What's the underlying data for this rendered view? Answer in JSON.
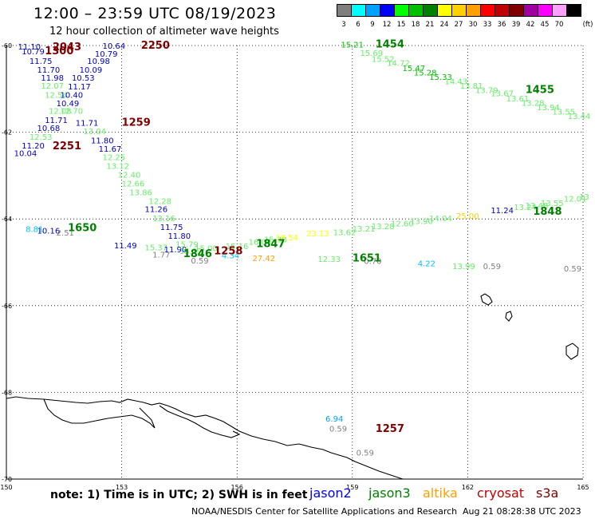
{
  "title": "12:00 – 23:59 UTC 08/19/2023",
  "subtitle": "12 hour collection of altimeter wave heights",
  "legend": {
    "unit": "(ft)",
    "entries": [
      {
        "label": "3",
        "color": "#7f7f7f"
      },
      {
        "label": "6",
        "color": "#00ffff"
      },
      {
        "label": "9",
        "color": "#00a0ff"
      },
      {
        "label": "12",
        "color": "#0000ff"
      },
      {
        "label": "15",
        "color": "#00ff00"
      },
      {
        "label": "18",
        "color": "#00c000"
      },
      {
        "label": "21",
        "color": "#008000"
      },
      {
        "label": "24",
        "color": "#ffff00"
      },
      {
        "label": "27",
        "color": "#ffd000"
      },
      {
        "label": "30",
        "color": "#ffa000"
      },
      {
        "label": "33",
        "color": "#ff0000"
      },
      {
        "label": "36",
        "color": "#c00000"
      },
      {
        "label": "39",
        "color": "#800000"
      },
      {
        "label": "42",
        "color": "#a000a0"
      },
      {
        "label": "45",
        "color": "#ff00ff"
      },
      {
        "label": "70",
        "color": "#ffa0ff"
      },
      {
        "label": "",
        "color": "#000000"
      }
    ]
  },
  "axes": {
    "lat_ticks": [
      "-60",
      "-62",
      "-64",
      "-66",
      "-68",
      "-70"
    ],
    "lon_ticks": [
      "150",
      "153",
      "156",
      "159",
      "162",
      "165"
    ]
  },
  "points": [
    {
      "t": "11.10",
      "c": "#0000c0",
      "lon": 150.3,
      "lat": -60.02
    },
    {
      "t": "10.79",
      "c": "#0000c0",
      "lon": 150.4,
      "lat": -60.13
    },
    {
      "t": "11.75",
      "c": "#0000c0",
      "lon": 150.6,
      "lat": -60.35
    },
    {
      "t": "11.70",
      "c": "#0000c0",
      "lon": 150.8,
      "lat": -60.55
    },
    {
      "t": "11.98",
      "c": "#0000c0",
      "lon": 150.9,
      "lat": -60.74
    },
    {
      "t": "12.07",
      "c": "#66ee66",
      "lon": 150.9,
      "lat": -60.92
    },
    {
      "t": "12.54",
      "c": "#66ee66",
      "lon": 151.0,
      "lat": -61.13
    },
    {
      "t": "12.08",
      "c": "#66ee66",
      "lon": 151.1,
      "lat": -61.5
    },
    {
      "t": "12.70",
      "c": "#66ee66",
      "lon": 151.4,
      "lat": -61.5
    },
    {
      "t": "10.64",
      "c": "#0000c0",
      "lon": 152.5,
      "lat": -60.0
    },
    {
      "t": "10.79",
      "c": "#0000c0",
      "lon": 152.3,
      "lat": -60.18
    },
    {
      "t": "10.98",
      "c": "#0000c0",
      "lon": 152.1,
      "lat": -60.35
    },
    {
      "t": "10.09",
      "c": "#0000c0",
      "lon": 151.9,
      "lat": -60.55
    },
    {
      "t": "10.53",
      "c": "#0000c0",
      "lon": 151.7,
      "lat": -60.74
    },
    {
      "t": "11.17",
      "c": "#0000c0",
      "lon": 151.6,
      "lat": -60.94
    },
    {
      "t": "10.40",
      "c": "#0000c0",
      "lon": 151.4,
      "lat": -61.13
    },
    {
      "t": "10.49",
      "c": "#0000c0",
      "lon": 151.3,
      "lat": -61.33
    },
    {
      "t": "11.71",
      "c": "#0000c0",
      "lon": 151.0,
      "lat": -61.71
    },
    {
      "t": "10.68",
      "c": "#0000c0",
      "lon": 150.8,
      "lat": -61.9
    },
    {
      "t": "12.53",
      "c": "#66ee66",
      "lon": 150.6,
      "lat": -62.1
    },
    {
      "t": "11.20",
      "c": "#0000c0",
      "lon": 150.4,
      "lat": -62.3
    },
    {
      "t": "10.04",
      "c": "#0000c0",
      "lon": 150.2,
      "lat": -62.48
    },
    {
      "t": "11.71",
      "c": "#0000c0",
      "lon": 151.8,
      "lat": -61.78
    },
    {
      "t": "13.04",
      "c": "#66ee66",
      "lon": 152.0,
      "lat": -61.97
    },
    {
      "t": "11.80",
      "c": "#0000c0",
      "lon": 152.2,
      "lat": -62.18
    },
    {
      "t": "11.67",
      "c": "#0000c0",
      "lon": 152.4,
      "lat": -62.38
    },
    {
      "t": "12.25",
      "c": "#66ee66",
      "lon": 152.5,
      "lat": -62.57
    },
    {
      "t": "13.12",
      "c": "#66ee66",
      "lon": 152.6,
      "lat": -62.77
    },
    {
      "t": "12.40",
      "c": "#66ee66",
      "lon": 152.9,
      "lat": -62.97
    },
    {
      "t": "12.66",
      "c": "#66ee66",
      "lon": 153.0,
      "lat": -63.18
    },
    {
      "t": "13.86",
      "c": "#66ee66",
      "lon": 153.2,
      "lat": -63.38
    },
    {
      "t": "12.28",
      "c": "#66ee66",
      "lon": 153.7,
      "lat": -63.58
    },
    {
      "t": "11.26",
      "c": "#0000c0",
      "lon": 153.6,
      "lat": -63.77
    },
    {
      "t": "13.16",
      "c": "#66ee66",
      "lon": 153.8,
      "lat": -63.98
    },
    {
      "t": "11.75",
      "c": "#0000c0",
      "lon": 154.0,
      "lat": -64.18
    },
    {
      "t": "11.80",
      "c": "#0000c0",
      "lon": 154.2,
      "lat": -64.38
    },
    {
      "t": "15.79",
      "c": "#66ee66",
      "lon": 154.4,
      "lat": -64.58
    },
    {
      "t": "11.49",
      "c": "#0000c0",
      "lon": 152.8,
      "lat": -64.6
    },
    {
      "t": "15.37",
      "c": "#66ee66",
      "lon": 153.6,
      "lat": -64.65
    },
    {
      "t": "1.77",
      "c": "#7f7f7f",
      "lon": 153.8,
      "lat": -64.82
    },
    {
      "t": "11.90",
      "c": "#0000c0",
      "lon": 154.1,
      "lat": -64.7
    },
    {
      "t": "15.22",
      "c": "#66ee66",
      "lon": 154.5,
      "lat": -64.73
    },
    {
      "t": "15.00",
      "c": "#66ee66",
      "lon": 154.9,
      "lat": -64.67
    },
    {
      "t": "15.16",
      "c": "#66ee66",
      "lon": 155.7,
      "lat": -64.62
    },
    {
      "t": "16.04",
      "c": "#66ee66",
      "lon": 156.3,
      "lat": -64.52
    },
    {
      "t": "15.38",
      "c": "#66ee66",
      "lon": 156.7,
      "lat": -64.47
    },
    {
      "t": "16.54",
      "c": "#ffff00",
      "lon": 157.0,
      "lat": -64.42
    },
    {
      "t": "0.59",
      "c": "#7f7f7f",
      "lon": 154.8,
      "lat": -64.95
    },
    {
      "t": "4.34",
      "c": "#00c0ff",
      "lon": 155.6,
      "lat": -64.83
    },
    {
      "t": "27.42",
      "c": "#ffa000",
      "lon": 156.4,
      "lat": -64.9
    },
    {
      "t": "8.81",
      "c": "#00c0ff",
      "lon": 150.5,
      "lat": -64.23
    },
    {
      "t": "10.16",
      "c": "#0000c0",
      "lon": 150.8,
      "lat": -64.26
    },
    {
      "t": "2.51",
      "c": "#7f7f7f",
      "lon": 151.3,
      "lat": -64.31
    },
    {
      "t": "23.13",
      "c": "#ffff00",
      "lon": 157.8,
      "lat": -64.33
    },
    {
      "t": "13.62",
      "c": "#66ee66",
      "lon": 158.5,
      "lat": -64.3
    },
    {
      "t": "13.21",
      "c": "#66ee66",
      "lon": 159.0,
      "lat": -64.22
    },
    {
      "t": "13.28",
      "c": "#66ee66",
      "lon": 159.5,
      "lat": -64.16
    },
    {
      "t": "12.60",
      "c": "#66ee66",
      "lon": 160.0,
      "lat": -64.1
    },
    {
      "t": "13.90",
      "c": "#66ee66",
      "lon": 160.5,
      "lat": -64.04
    },
    {
      "t": "14.04",
      "c": "#66ee66",
      "lon": 161.0,
      "lat": -63.98
    },
    {
      "t": "25.00",
      "c": "#ffd000",
      "lon": 161.7,
      "lat": -63.92
    },
    {
      "t": "12.33",
      "c": "#66ee66",
      "lon": 158.1,
      "lat": -64.92
    },
    {
      "t": "0.70",
      "c": "#7f7f7f",
      "lon": 159.3,
      "lat": -64.96
    },
    {
      "t": "4.22",
      "c": "#00c0ff",
      "lon": 160.7,
      "lat": -65.02
    },
    {
      "t": "13.99",
      "c": "#66ee66",
      "lon": 161.6,
      "lat": -65.08
    },
    {
      "t": "0.59",
      "c": "#7f7f7f",
      "lon": 162.4,
      "lat": -65.08
    },
    {
      "t": "0.59",
      "c": "#7f7f7f",
      "lon": 164.5,
      "lat": -65.14
    },
    {
      "t": "11.24",
      "c": "#0000c0",
      "lon": 162.6,
      "lat": -63.79
    },
    {
      "t": "13.24",
      "c": "#66ee66",
      "lon": 163.2,
      "lat": -63.72
    },
    {
      "t": "13.48",
      "c": "#66ee66",
      "lon": 163.5,
      "lat": -63.68
    },
    {
      "t": "13.55",
      "c": "#66ee66",
      "lon": 163.9,
      "lat": -63.63
    },
    {
      "t": "12.01",
      "c": "#66ee66",
      "lon": 164.5,
      "lat": -63.53
    },
    {
      "t": "13",
      "c": "#66ee66",
      "lon": 164.9,
      "lat": -63.48
    },
    {
      "t": "15.21",
      "c": "#00c000",
      "lon": 158.7,
      "lat": -59.97
    },
    {
      "t": "15.69",
      "c": "#66ee66",
      "lon": 159.2,
      "lat": -60.17
    },
    {
      "t": "15.52",
      "c": "#66ee66",
      "lon": 159.5,
      "lat": -60.3
    },
    {
      "t": "14.72",
      "c": "#66ee66",
      "lon": 159.9,
      "lat": -60.4
    },
    {
      "t": "15.47",
      "c": "#00c000",
      "lon": 160.3,
      "lat": -60.52
    },
    {
      "t": "15.28",
      "c": "#00c000",
      "lon": 160.6,
      "lat": -60.62
    },
    {
      "t": "15.33",
      "c": "#00c000",
      "lon": 161.0,
      "lat": -60.72
    },
    {
      "t": "14.43",
      "c": "#66ee66",
      "lon": 161.4,
      "lat": -60.82
    },
    {
      "t": "13.81",
      "c": "#66ee66",
      "lon": 161.8,
      "lat": -60.92
    },
    {
      "t": "13.79",
      "c": "#66ee66",
      "lon": 162.2,
      "lat": -61.02
    },
    {
      "t": "13.67",
      "c": "#66ee66",
      "lon": 162.6,
      "lat": -61.1
    },
    {
      "t": "13.61",
      "c": "#66ee66",
      "lon": 163.0,
      "lat": -61.22
    },
    {
      "t": "13.28",
      "c": "#66ee66",
      "lon": 163.4,
      "lat": -61.32
    },
    {
      "t": "13.94",
      "c": "#66ee66",
      "lon": 163.8,
      "lat": -61.42
    },
    {
      "t": "13.55",
      "c": "#66ee66",
      "lon": 164.2,
      "lat": -61.52
    },
    {
      "t": "13.44",
      "c": "#66ee66",
      "lon": 164.6,
      "lat": -61.62
    },
    {
      "t": "6.94",
      "c": "#00a0ff",
      "lon": 158.3,
      "lat": -68.6
    },
    {
      "t": "0.59",
      "c": "#7f7f7f",
      "lon": 158.4,
      "lat": -68.83
    },
    {
      "t": "0.59",
      "c": "#7f7f7f",
      "lon": 159.1,
      "lat": -69.38
    }
  ],
  "times": [
    {
      "t": "2043",
      "c": "#800000",
      "lon": 151.2,
      "lat": -60.04
    },
    {
      "t": "1300",
      "c": "#800000",
      "lon": 151.0,
      "lat": -60.13
    },
    {
      "t": "2250",
      "c": "#800000",
      "lon": 153.5,
      "lat": -60.0
    },
    {
      "t": "1259",
      "c": "#800000",
      "lon": 153.0,
      "lat": -61.78
    },
    {
      "t": "2251",
      "c": "#800000",
      "lon": 151.2,
      "lat": -62.32
    },
    {
      "t": "1650",
      "c": "#008000",
      "lon": 151.6,
      "lat": -64.21
    },
    {
      "t": "1846",
      "c": "#008000",
      "lon": 154.6,
      "lat": -64.81
    },
    {
      "t": "1258",
      "c": "#800000",
      "lon": 155.4,
      "lat": -64.74
    },
    {
      "t": "1847",
      "c": "#008000",
      "lon": 156.5,
      "lat": -64.58
    },
    {
      "t": "1651",
      "c": "#008000",
      "lon": 159.0,
      "lat": -64.91
    },
    {
      "t": "1454",
      "c": "#008000",
      "lon": 159.6,
      "lat": -59.97
    },
    {
      "t": "1455",
      "c": "#008000",
      "lon": 163.5,
      "lat": -61.02
    },
    {
      "t": "1848",
      "c": "#008000",
      "lon": 163.7,
      "lat": -63.83
    },
    {
      "t": "1257",
      "c": "#800000",
      "lon": 159.6,
      "lat": -68.84
    }
  ],
  "footnote": "note: 1) Time is in UTC; 2) SWH is in feet",
  "satellites": [
    {
      "name": "jason2",
      "color": "#0000ff"
    },
    {
      "name": "jason3",
      "color": "#008000"
    },
    {
      "name": "altika",
      "color": "#ffa000"
    },
    {
      "name": "cryosat",
      "color": "#c00000"
    },
    {
      "name": "s3a",
      "color": "#800000"
    }
  ],
  "credit": "NOAA/NESDIS Center for Satellite Applications and Research",
  "generated": "Aug 21 08:28:38 UTC 2023"
}
